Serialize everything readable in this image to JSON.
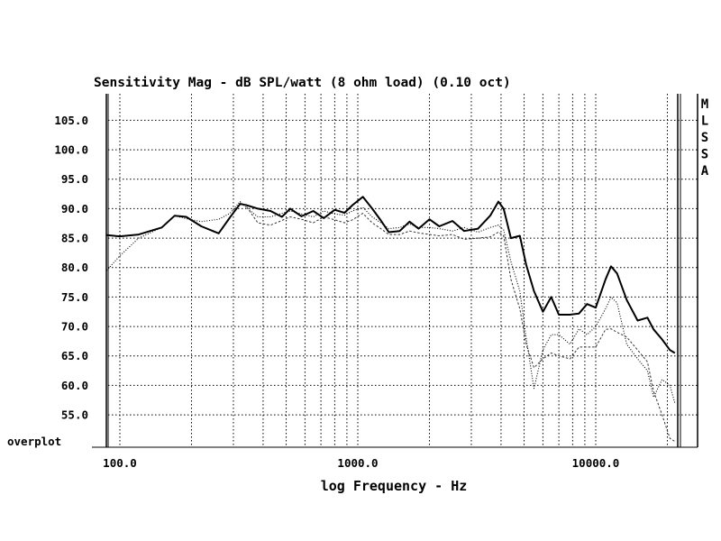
{
  "chart_data": {
    "type": "line",
    "title": "Sensitivity Mag - dB SPL/watt (8 ohm load) (0.10 oct)",
    "xlabel": "log Frequency - Hz",
    "ylabel": "",
    "x_scale": "log",
    "xlim": [
      85,
      23000
    ],
    "ylim": [
      50,
      110
    ],
    "y_ticks": [
      "105.0",
      "100.0",
      "95.0",
      "90.0",
      "85.0",
      "80.0",
      "75.0",
      "70.0",
      "65.0",
      "60.0",
      "55.0"
    ],
    "x_ticks": [
      {
        "value": 100,
        "label": "100.0"
      },
      {
        "value": 1000,
        "label": "1000.0"
      },
      {
        "value": 10000,
        "label": "10000.0"
      }
    ],
    "side_label": [
      "M",
      "L",
      "S",
      "S",
      "A"
    ],
    "corner_label": "overplot",
    "grid": true,
    "series": [
      {
        "style": "solid",
        "points": [
          [
            88,
            85.5
          ],
          [
            100,
            85.3
          ],
          [
            120,
            85.6
          ],
          [
            150,
            86.8
          ],
          [
            170,
            88.8
          ],
          [
            190,
            88.6
          ],
          [
            220,
            87.0
          ],
          [
            260,
            85.8
          ],
          [
            290,
            88.5
          ],
          [
            320,
            90.8
          ],
          [
            340,
            90.6
          ],
          [
            380,
            90.0
          ],
          [
            430,
            89.6
          ],
          [
            480,
            88.6
          ],
          [
            520,
            90.0
          ],
          [
            580,
            88.7
          ],
          [
            650,
            89.6
          ],
          [
            720,
            88.4
          ],
          [
            800,
            89.8
          ],
          [
            880,
            89.3
          ],
          [
            950,
            90.6
          ],
          [
            1050,
            92.0
          ],
          [
            1150,
            90.0
          ],
          [
            1250,
            88.0
          ],
          [
            1350,
            86.0
          ],
          [
            1500,
            86.2
          ],
          [
            1650,
            87.8
          ],
          [
            1800,
            86.6
          ],
          [
            2000,
            88.2
          ],
          [
            2200,
            87.0
          ],
          [
            2500,
            87.9
          ],
          [
            2800,
            86.2
          ],
          [
            3200,
            86.6
          ],
          [
            3600,
            88.8
          ],
          [
            3900,
            91.2
          ],
          [
            4100,
            90.0
          ],
          [
            4400,
            85.0
          ],
          [
            4800,
            85.4
          ],
          [
            5100,
            80.5
          ],
          [
            5500,
            76.0
          ],
          [
            6000,
            72.5
          ],
          [
            6500,
            75.0
          ],
          [
            7000,
            72.0
          ],
          [
            7800,
            72.0
          ],
          [
            8500,
            72.2
          ],
          [
            9200,
            73.8
          ],
          [
            10000,
            73.2
          ],
          [
            11000,
            78.0
          ],
          [
            11600,
            80.2
          ],
          [
            12300,
            79.0
          ],
          [
            13500,
            74.5
          ],
          [
            15000,
            71.0
          ],
          [
            16500,
            71.5
          ],
          [
            17500,
            69.5
          ],
          [
            19000,
            67.8
          ],
          [
            20500,
            66.0
          ],
          [
            21500,
            65.5
          ]
        ]
      },
      {
        "style": "dotted",
        "points": [
          [
            88,
            79.5
          ],
          [
            100,
            82.0
          ],
          [
            120,
            85.0
          ],
          [
            150,
            86.8
          ],
          [
            170,
            88.8
          ],
          [
            190,
            88.3
          ],
          [
            220,
            87.8
          ],
          [
            260,
            88.2
          ],
          [
            290,
            89.2
          ],
          [
            320,
            91.2
          ],
          [
            340,
            90.2
          ],
          [
            380,
            88.6
          ],
          [
            430,
            88.6
          ],
          [
            480,
            89.2
          ],
          [
            520,
            89.6
          ],
          [
            580,
            89.1
          ],
          [
            650,
            88.6
          ],
          [
            720,
            89.6
          ],
          [
            800,
            89.1
          ],
          [
            880,
            88.9
          ],
          [
            950,
            89.6
          ],
          [
            1050,
            90.2
          ],
          [
            1150,
            88.6
          ],
          [
            1250,
            87.6
          ],
          [
            1350,
            86.6
          ],
          [
            1500,
            86.8
          ],
          [
            1650,
            87.4
          ],
          [
            1800,
            86.8
          ],
          [
            2000,
            86.8
          ],
          [
            2200,
            86.6
          ],
          [
            2500,
            86.2
          ],
          [
            2800,
            86.8
          ],
          [
            3200,
            86.0
          ],
          [
            3600,
            86.8
          ],
          [
            3900,
            87.2
          ],
          [
            4100,
            86.4
          ],
          [
            4400,
            81.0
          ],
          [
            4800,
            76.0
          ],
          [
            5100,
            68.0
          ],
          [
            5500,
            59.5
          ],
          [
            6000,
            66.0
          ],
          [
            6500,
            68.6
          ],
          [
            7000,
            68.6
          ],
          [
            7800,
            67.0
          ],
          [
            8500,
            69.6
          ],
          [
            9200,
            68.6
          ],
          [
            10000,
            70.0
          ],
          [
            11000,
            73.0
          ],
          [
            11600,
            75.0
          ],
          [
            12300,
            74.0
          ],
          [
            13500,
            67.0
          ],
          [
            15000,
            64.5
          ],
          [
            16500,
            62.5
          ],
          [
            17500,
            58.0
          ],
          [
            19000,
            61.0
          ],
          [
            20500,
            60.0
          ],
          [
            21500,
            57.0
          ]
        ]
      },
      {
        "style": "dashed",
        "points": [
          [
            320,
            91.0
          ],
          [
            340,
            90.4
          ],
          [
            380,
            87.6
          ],
          [
            430,
            87.2
          ],
          [
            480,
            88.0
          ],
          [
            520,
            88.6
          ],
          [
            580,
            88.2
          ],
          [
            650,
            87.6
          ],
          [
            720,
            88.6
          ],
          [
            800,
            88.1
          ],
          [
            880,
            87.6
          ],
          [
            950,
            88.1
          ],
          [
            1050,
            89.2
          ],
          [
            1150,
            87.6
          ],
          [
            1250,
            86.6
          ],
          [
            1350,
            85.6
          ],
          [
            1500,
            85.6
          ],
          [
            1650,
            86.2
          ],
          [
            1800,
            85.9
          ],
          [
            2000,
            85.6
          ],
          [
            2200,
            85.4
          ],
          [
            2500,
            85.6
          ],
          [
            2800,
            84.8
          ],
          [
            3200,
            85.0
          ],
          [
            3600,
            85.2
          ],
          [
            3900,
            86.0
          ],
          [
            4100,
            85.4
          ],
          [
            4400,
            78.0
          ],
          [
            4800,
            73.0
          ],
          [
            5100,
            67.0
          ],
          [
            5500,
            63.0
          ],
          [
            6000,
            64.5
          ],
          [
            6500,
            65.5
          ],
          [
            7000,
            65.0
          ],
          [
            7800,
            64.5
          ],
          [
            8500,
            66.5
          ],
          [
            9200,
            66.5
          ],
          [
            10000,
            66.5
          ],
          [
            11000,
            69.5
          ],
          [
            11600,
            69.6
          ],
          [
            12300,
            69.0
          ],
          [
            13500,
            68.2
          ],
          [
            15000,
            66.0
          ],
          [
            16500,
            64.0
          ],
          [
            17500,
            59.0
          ],
          [
            19000,
            55.0
          ],
          [
            20500,
            51.0
          ],
          [
            21500,
            50.5
          ]
        ]
      }
    ]
  }
}
